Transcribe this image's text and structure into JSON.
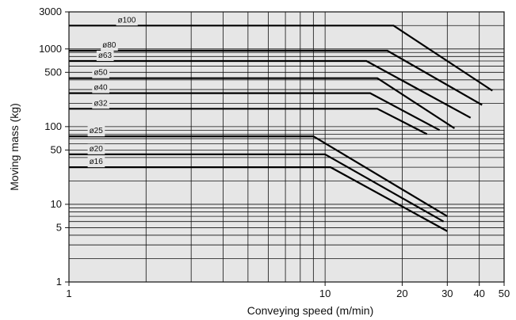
{
  "chart_data": {
    "type": "line",
    "title": "",
    "xlabel": "Conveying speed (m/min)",
    "ylabel": "Moving mass (kg)",
    "x_scale": "log",
    "y_scale": "log",
    "xlim": [
      1,
      50
    ],
    "ylim": [
      1,
      3000
    ],
    "x_ticks": [
      1,
      10,
      20,
      30,
      40,
      50
    ],
    "x_tick_labels": [
      "1",
      "10",
      "20",
      "30",
      "40",
      "50"
    ],
    "y_ticks": [
      1,
      5,
      10,
      50,
      100,
      500,
      1000,
      3000
    ],
    "y_tick_labels": [
      "1",
      "5",
      "10",
      "50",
      "100",
      "500",
      "1000",
      "3000"
    ],
    "grid": true,
    "background_color": "#e6e6e6",
    "line_color": "#000000",
    "series": [
      {
        "name": "ø100",
        "x": [
          1,
          18.5,
          45
        ],
        "y": [
          2000,
          2000,
          290
        ]
      },
      {
        "name": "ø80",
        "x": [
          1,
          17.5,
          41
        ],
        "y": [
          950,
          950,
          190
        ]
      },
      {
        "name": "ø63",
        "x": [
          1,
          14.5,
          37
        ],
        "y": [
          700,
          700,
          130
        ]
      },
      {
        "name": "ø50",
        "x": [
          1,
          16,
          32
        ],
        "y": [
          420,
          420,
          95
        ]
      },
      {
        "name": "ø40",
        "x": [
          1,
          15,
          28
        ],
        "y": [
          270,
          270,
          90
        ]
      },
      {
        "name": "ø32",
        "x": [
          1,
          16,
          25
        ],
        "y": [
          170,
          170,
          80
        ]
      },
      {
        "name": "ø25",
        "x": [
          1,
          9,
          30
        ],
        "y": [
          75,
          75,
          7
        ]
      },
      {
        "name": "ø20",
        "x": [
          1,
          10,
          29
        ],
        "y": [
          44,
          44,
          6
        ]
      },
      {
        "name": "ø16",
        "x": [
          1,
          10.5,
          30
        ],
        "y": [
          30,
          30,
          4.5
        ]
      }
    ]
  }
}
